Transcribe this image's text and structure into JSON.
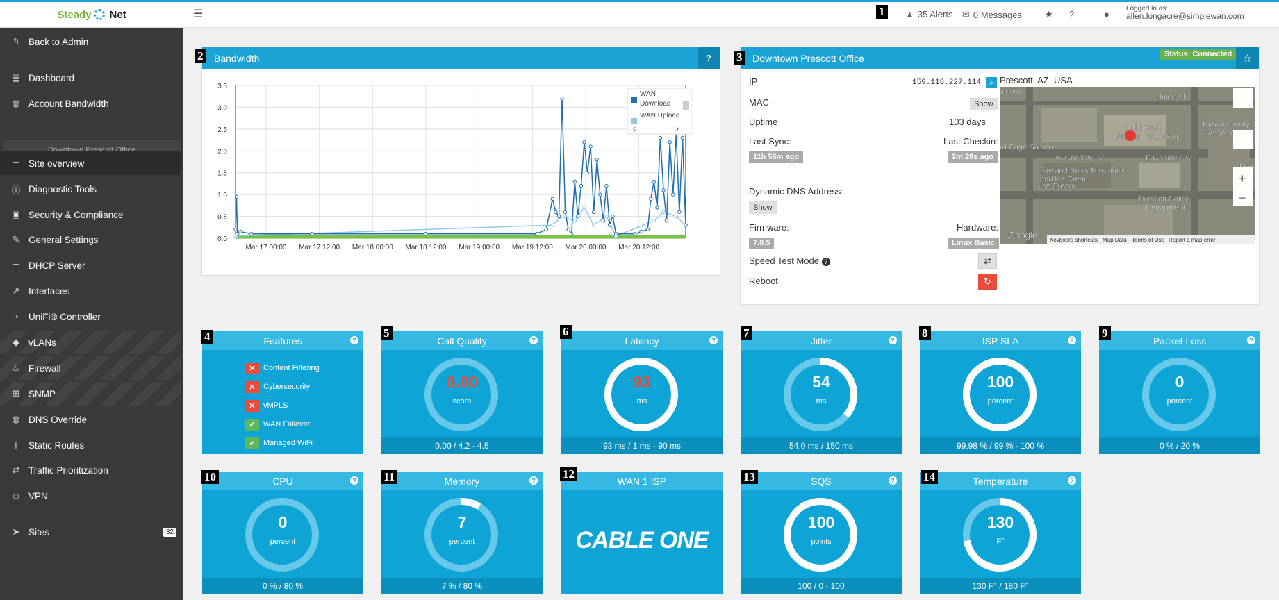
{
  "app": {
    "logo_left": "Steady",
    "logo_right": "Net"
  },
  "topbar": {
    "alerts": "35 Alerts",
    "messages": "0 Messages",
    "logged_in_label": "Logged in as:",
    "user": "allen.longacre@simplewan.com"
  },
  "badges": [
    "1",
    "2",
    "3",
    "4",
    "5",
    "6",
    "7",
    "8",
    "9",
    "10",
    "11",
    "12",
    "13",
    "14"
  ],
  "sidebar": {
    "section_label": "Downtown Prescott Office",
    "items": [
      {
        "label": "Back to Admin",
        "icon": "reply-icon"
      },
      {
        "label": "Dashboard",
        "icon": "dashboard-icon"
      },
      {
        "label": "Account Bandwidth",
        "icon": "globe-icon"
      },
      {
        "label": "Site overview",
        "icon": "hdd-icon"
      },
      {
        "label": "Diagnostic Tools",
        "icon": "info-icon"
      },
      {
        "label": "Security & Compliance",
        "icon": "lock-icon"
      },
      {
        "label": "General Settings",
        "icon": "wrench-icon"
      },
      {
        "label": "DHCP Server",
        "icon": "laptop-icon"
      },
      {
        "label": "Interfaces",
        "icon": "external-link-icon"
      },
      {
        "label": "UniFi® Controller",
        "icon": "wifi-icon"
      },
      {
        "label": "vLANs",
        "icon": "tag-icon"
      },
      {
        "label": "Firewall",
        "icon": "fire-icon"
      },
      {
        "label": "SNMP",
        "icon": "sitemap-icon"
      },
      {
        "label": "DNS Override",
        "icon": "globe-icon"
      },
      {
        "label": "Static Routes",
        "icon": "road-icon"
      },
      {
        "label": "Traffic Prioritization",
        "icon": "exchange-icon"
      },
      {
        "label": "VPN",
        "icon": "users-icon"
      },
      {
        "label": "Sites",
        "icon": "location-arrow-icon",
        "count": "32"
      }
    ]
  },
  "bandwidth": {
    "title": "Bandwidth",
    "help": "?"
  },
  "chart_data": {
    "type": "line",
    "yticks": [
      "0.0",
      "0.5",
      "1.0",
      "1.5",
      "2.0",
      "2.5",
      "3.0",
      "3.5"
    ],
    "xticks": [
      "Mar 17 00:00",
      "Mar 17 12:00",
      "Mar 18 00:00",
      "Mar 18 12:00",
      "Mar 19 00:00",
      "Mar 19 12:00",
      "Mar 20 00:00",
      "Mar 20 12:00"
    ],
    "ylim": [
      0,
      3.5
    ],
    "legend_position": "top-right",
    "series": [
      {
        "name": "WAN Download",
        "color": "#1f6fb2",
        "points": [
          [
            0,
            0.2
          ],
          [
            0.3,
            0.95
          ],
          [
            0.6,
            0.1
          ],
          [
            1.5,
            0.15
          ],
          [
            5,
            0.1
          ],
          [
            24,
            0.1
          ],
          [
            60,
            0.1
          ],
          [
            95,
            0.1
          ],
          [
            98,
            0.2
          ],
          [
            100,
            0.9
          ],
          [
            101,
            0.6
          ],
          [
            102,
            0.5
          ],
          [
            103,
            3.2
          ],
          [
            104,
            0.6
          ],
          [
            105,
            0.2
          ],
          [
            106,
            0.1
          ],
          [
            107,
            1.3
          ],
          [
            108,
            0.5
          ],
          [
            109,
            1.2
          ],
          [
            110,
            2.2
          ],
          [
            111,
            1.5
          ],
          [
            112,
            2.1
          ],
          [
            113,
            0.6
          ],
          [
            114,
            1.8
          ],
          [
            115,
            1.0
          ],
          [
            116,
            0.4
          ],
          [
            117,
            1.2
          ],
          [
            118,
            0.3
          ],
          [
            119,
            0.5
          ],
          [
            120,
            0.1
          ],
          [
            126,
            0.1
          ],
          [
            128,
            0.15
          ],
          [
            130,
            0.2
          ],
          [
            131,
            0.9
          ],
          [
            132,
            1.3
          ],
          [
            133,
            0.7
          ],
          [
            134,
            2.3
          ],
          [
            135,
            1.1
          ],
          [
            136,
            0.4
          ],
          [
            137,
            2.2
          ],
          [
            138,
            1.0
          ],
          [
            139,
            2.4
          ],
          [
            140,
            0.6
          ],
          [
            141,
            2.3
          ],
          [
            142,
            0.3
          ]
        ]
      },
      {
        "name": "WAN Upload",
        "color": "#8ec9e8",
        "points": [
          [
            0,
            0.05
          ],
          [
            100,
            0.3
          ],
          [
            103,
            0.5
          ],
          [
            107,
            0.4
          ],
          [
            110,
            0.7
          ],
          [
            113,
            0.3
          ],
          [
            117,
            0.5
          ],
          [
            120,
            0.05
          ],
          [
            132,
            0.4
          ],
          [
            135,
            0.6
          ],
          [
            139,
            0.5
          ],
          [
            142,
            0.3
          ]
        ]
      },
      {
        "name": "",
        "color": "#7cc04a",
        "points": [
          [
            0,
            0.03
          ],
          [
            142,
            0.03
          ]
        ]
      }
    ]
  },
  "site": {
    "title": "Downtown Prescott Office",
    "status": "Status: Connected",
    "ip_label": "IP",
    "ip": "159.118.227.114",
    "mac_label": "MAC",
    "show": "Show",
    "uptime_label": "Uptime",
    "uptime": "103 days",
    "last_sync_label": "Last Sync:",
    "last_sync": "11h 56m ago",
    "last_checkin_label": "Last Checkin:",
    "last_checkin": "2m 28s ago",
    "ddns_label": "Dynamic DNS Address:",
    "firmware_label": "Firmware:",
    "firmware": "7.0.5",
    "hardware_label": "Hardware:",
    "hardware": "Linux Basic",
    "speedtest_label": "Speed Test Mode",
    "reboot_label": "Reboot",
    "location": "Prescott, AZ, USA",
    "map": {
      "labels": [
        "Union St",
        "Solid Rock",
        "Christian Fellowship",
        "Thomas Reilly",
        "& Associates",
        "rd Cage Saloon",
        "W Goodwin St",
        "E Goodwin St",
        "Fite and Son's Mercantile",
        "and Ice Cream",
        "Ice Cream",
        "Prescott Police",
        "Department",
        "Prescott",
        "aloons",
        "Google"
      ],
      "footer": [
        "Keyboard shortcuts",
        "Map Data",
        "Terms of Use",
        "Report a map error"
      ]
    }
  },
  "tiles": {
    "features": {
      "title": "Features",
      "items": [
        {
          "label": "Content Filtering",
          "on": false
        },
        {
          "label": "Cybersecurity",
          "on": false
        },
        {
          "label": "vMPLS",
          "on": false
        },
        {
          "label": "WAN Failover",
          "on": true
        },
        {
          "label": "Managed WiFi",
          "on": true
        }
      ]
    },
    "call_quality": {
      "title": "Call Quality",
      "value": "0.00",
      "unit": "score",
      "footer": "0.00 / 4.2 - 4.5",
      "fill": 0,
      "value_color": "#e74c3c"
    },
    "latency": {
      "title": "Latency",
      "value": "93",
      "unit": "ms",
      "footer": "93 ms / 1 ms - 90 ms",
      "fill": 1,
      "value_color": "#e74c3c"
    },
    "jitter": {
      "title": "Jitter",
      "value": "54",
      "unit": "ms",
      "footer": "54.0 ms / 150 ms",
      "fill": 0.36,
      "value_color": "#ffffff"
    },
    "isp_sla": {
      "title": "ISP SLA",
      "value": "100",
      "unit": "percent",
      "footer": "99.98 % / 99 % - 100 %",
      "fill": 1,
      "value_color": "#ffffff"
    },
    "packet_loss": {
      "title": "Packet Loss",
      "value": "0",
      "unit": "percent",
      "footer": "0 % / 20 %",
      "fill": 0,
      "value_color": "#ffffff"
    },
    "cpu": {
      "title": "CPU",
      "value": "0",
      "unit": "percent",
      "footer": "0 % / 80 %",
      "fill": 0,
      "value_color": "#ffffff"
    },
    "memory": {
      "title": "Memory",
      "value": "7",
      "unit": "percent",
      "footer": "7 % / 80 %",
      "fill": 0.09,
      "value_color": "#ffffff"
    },
    "wan_isp": {
      "title": "WAN 1 ISP",
      "logo_text": "CABLE ONE"
    },
    "sqs": {
      "title": "SQS",
      "value": "100",
      "unit": "points",
      "footer": "100 / 0 - 100",
      "fill": 1,
      "value_color": "#ffffff"
    },
    "temperature": {
      "title": "Temperature",
      "value": "130",
      "unit": "F°",
      "footer": "130 F° / 180 F°",
      "fill": 0.72,
      "value_color": "#ffffff"
    }
  }
}
